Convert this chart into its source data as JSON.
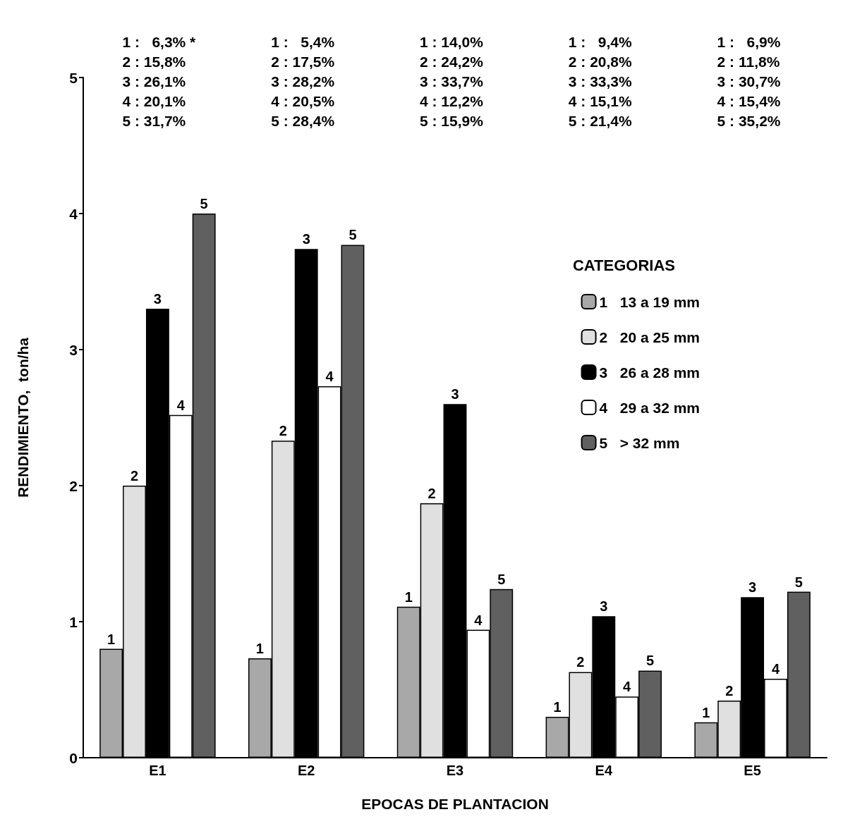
{
  "chart_data": {
    "type": "bar",
    "xlabel": "EPOCAS DE PLANTACION",
    "ylabel": "RENDIMIENTO,  ton/ha",
    "legend_title": "CATEGORIAS",
    "categories": [
      "E1",
      "E2",
      "E3",
      "E4",
      "E5"
    ],
    "series": [
      {
        "name": "1   13 a 19 mm",
        "color": "#a8a8a8",
        "values": [
          0.8,
          0.73,
          1.11,
          0.3,
          0.26
        ]
      },
      {
        "name": "2   20 a 25 mm",
        "color": "#e0e0e0",
        "values": [
          2.0,
          2.33,
          1.87,
          0.63,
          0.42
        ]
      },
      {
        "name": "3   26 a 28 mm",
        "color": "#000000",
        "values": [
          3.3,
          3.74,
          2.6,
          1.04,
          1.18
        ]
      },
      {
        "name": "4   29 a 32 mm",
        "color": "#ffffff",
        "values": [
          2.52,
          2.73,
          0.94,
          0.45,
          0.58
        ]
      },
      {
        "name": "5   > 32 mm",
        "color": "#606060",
        "values": [
          4.0,
          3.77,
          1.24,
          0.64,
          1.22
        ]
      }
    ],
    "ylim": [
      0,
      5
    ],
    "yticks": [
      0,
      1,
      2,
      3,
      4,
      5
    ],
    "grid": false,
    "legend": "right",
    "annotations": [
      "1 :   6,3% *\n2 : 15,8%\n3 : 26,1%\n4 : 20,1%\n5 : 31,7%",
      "1 :   5,4%\n2 : 17,5%\n3 : 28,2%\n4 : 20,5%\n5 : 28,4%",
      "1 : 14,0%\n2 : 24,2%\n3 : 33,7%\n4 : 12,2%\n5 : 15,9%",
      "1 :   9,4%\n2 : 20,8%\n3 : 33,3%\n4 : 15,1%\n5 : 21,4%",
      "1 :   6,9%\n2 : 11,8%\n3 : 30,7%\n4 : 15,4%\n5 : 35,2%",
      "1",
      "2",
      "3",
      "4",
      "5",
      "1",
      "2",
      "3",
      "4",
      "5",
      "1",
      "2",
      "3",
      "4",
      "5",
      "1",
      "2",
      "3",
      "4",
      "5",
      "1",
      "2",
      "3",
      "4",
      "5"
    ]
  }
}
